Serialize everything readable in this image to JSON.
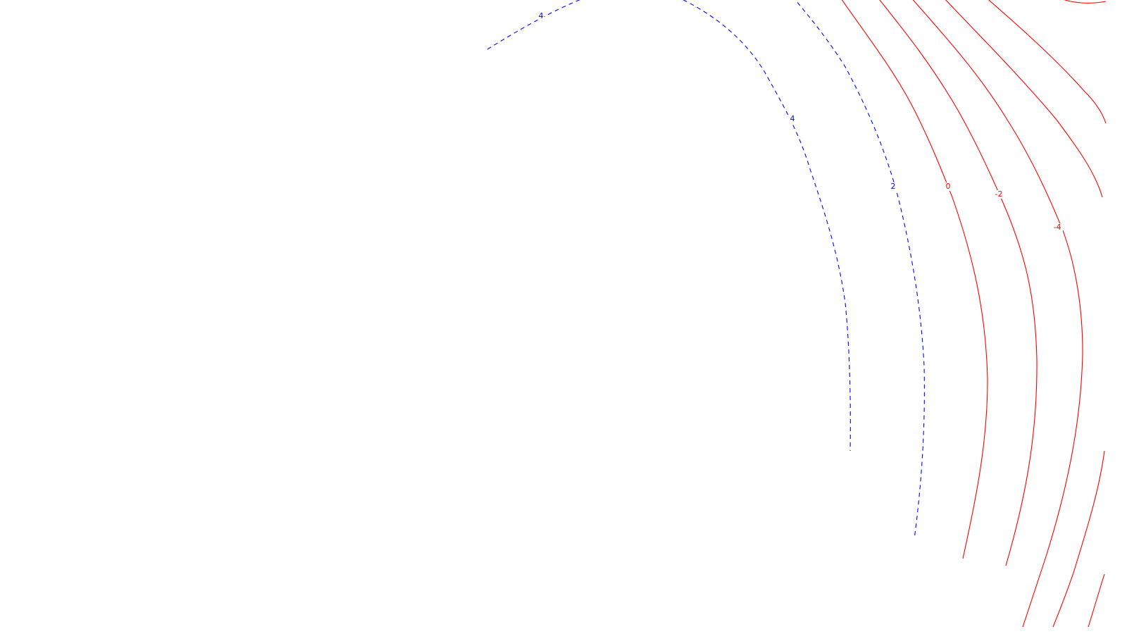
{
  "chart_data": {
    "type": "contour",
    "colors": {
      "positive": "#0000ff",
      "negative": "#ff0000",
      "background": "#ffffff"
    },
    "line_styles": {
      "positive": "dashed",
      "negative": "solid"
    },
    "contours": [
      {
        "level": 4,
        "label": "4",
        "sign": "positive"
      },
      {
        "level": 2,
        "label": "2",
        "sign": "positive"
      },
      {
        "level": 0,
        "label": "0",
        "sign": "negative"
      },
      {
        "level": -2,
        "label": "-2",
        "sign": "negative"
      },
      {
        "level": -4,
        "label": "-4",
        "sign": "negative"
      },
      {
        "level": null,
        "label": "",
        "sign": "negative"
      },
      {
        "level": null,
        "label": "",
        "sign": "negative"
      }
    ],
    "extra_labels": [
      {
        "text": "4",
        "sign": "positive"
      }
    ],
    "grid": false,
    "legend": "none"
  }
}
